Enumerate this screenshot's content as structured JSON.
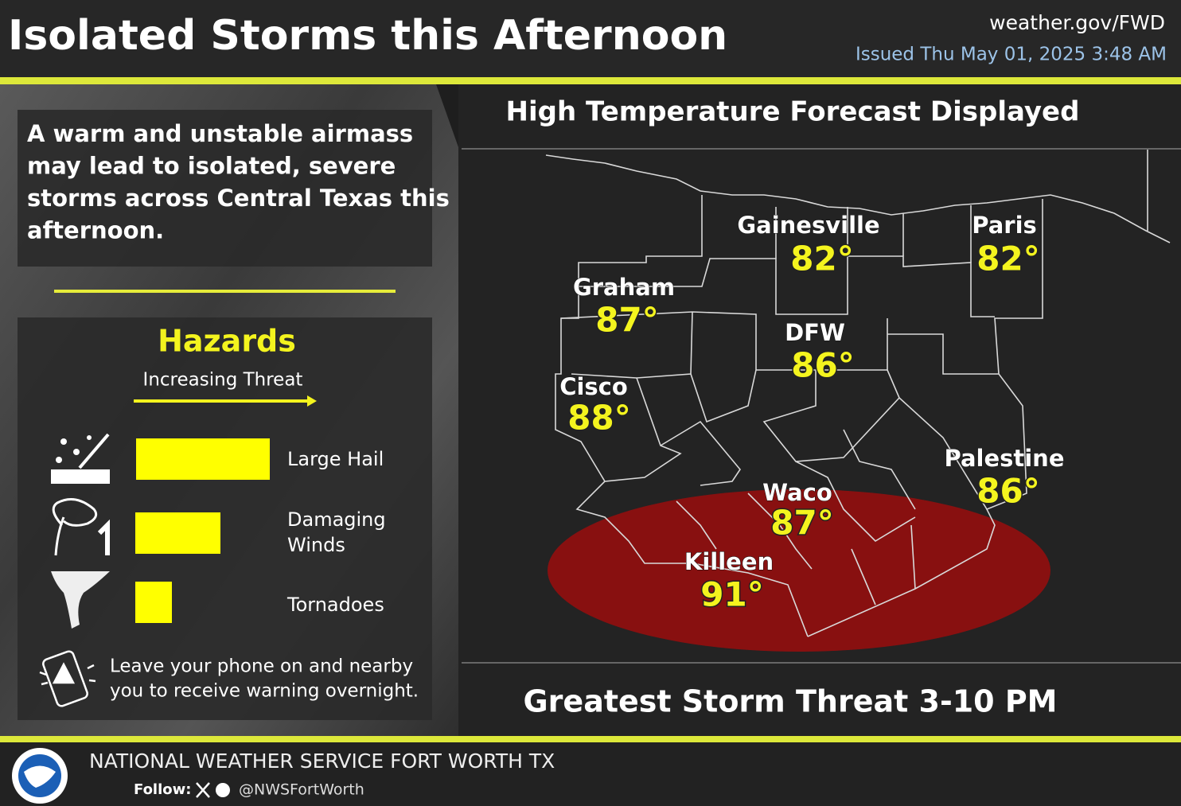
{
  "header": {
    "title": "Isolated Storms this Afternoon",
    "website": "weather.gov/FWD",
    "issued": "Issued Thu May 01, 2025 3:48 AM"
  },
  "summary": {
    "lines": [
      "A warm and unstable airmass",
      "may lead to isolated, severe",
      "storms across Central Texas this",
      "afternoon."
    ]
  },
  "hazards": {
    "title": "Hazards",
    "subtitle": "Increasing Threat",
    "items": [
      {
        "label_lines": [
          "Large Hail"
        ]
      },
      {
        "label_lines": [
          "Damaging",
          "Winds"
        ]
      },
      {
        "label_lines": [
          "Tornadoes"
        ]
      }
    ]
  },
  "note": {
    "lines": [
      "Leave your phone on and nearby",
      "you to receive warning overnight."
    ]
  },
  "map": {
    "title": "High Temperature Forecast Displayed",
    "cities": [
      {
        "name": "Gainesville",
        "temp": "82°"
      },
      {
        "name": "Paris",
        "temp": "82°"
      },
      {
        "name": "Graham",
        "temp": "87°"
      },
      {
        "name": "DFW",
        "temp": "86°"
      },
      {
        "name": "Cisco",
        "temp": "88°"
      },
      {
        "name": "Palestine",
        "temp": "86°"
      },
      {
        "name": "Waco",
        "temp": "87°"
      },
      {
        "name": "Killeen",
        "temp": "91°"
      }
    ],
    "threat_window": "Greatest Storm Threat 3-10 PM"
  },
  "footer": {
    "agency": "NATIONAL WEATHER SERVICE FORT WORTH TX",
    "follow": "Follow:",
    "handle": "@NWSFortWorth"
  }
}
